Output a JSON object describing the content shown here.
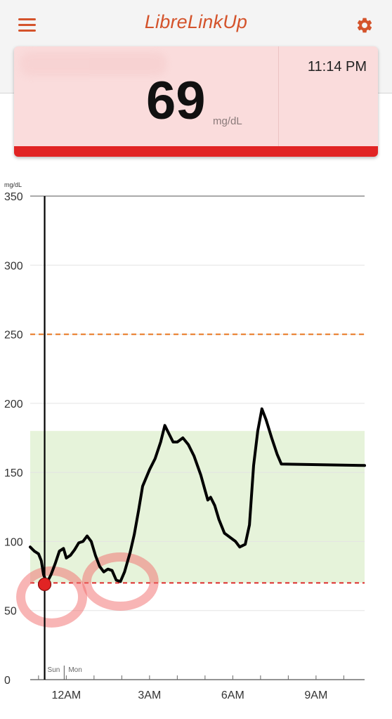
{
  "app": {
    "title": "LibreLinkUp",
    "accent_color": "#d4532b"
  },
  "header": {
    "menu_icon": "hamburger-menu-icon",
    "settings_icon": "gear-icon"
  },
  "reading": {
    "time": "11:14 PM",
    "value": "69",
    "unit": "mg/dL",
    "status_color": "#e12424",
    "card_color": "#fadcdc"
  },
  "chart_data": {
    "type": "line",
    "unit_label": "mg/dL",
    "ylim": [
      0,
      350
    ],
    "yticks": [
      0,
      50,
      100,
      150,
      200,
      250,
      300,
      350
    ],
    "xlim": [
      -1.3,
      10.75
    ],
    "xticks": [
      {
        "value": 0,
        "label": "12AM"
      },
      {
        "value": 3,
        "label": "3AM"
      },
      {
        "value": 6,
        "label": "6AM"
      },
      {
        "value": 9,
        "label": "9AM"
      }
    ],
    "day_labels": {
      "before": "Sun",
      "after": "Mon"
    },
    "target_range": {
      "low": 70,
      "high": 180,
      "color": "#e6f3da"
    },
    "high_threshold": {
      "value": 250,
      "color": "#e8761e"
    },
    "low_threshold": {
      "value": 70,
      "color": "#dd2b2b"
    },
    "cursor": {
      "x": -0.78,
      "y": 69,
      "color": "#e12424"
    },
    "series": [
      {
        "values": [
          [
            -1.3,
            96
          ],
          [
            -1.15,
            93
          ],
          [
            -1.0,
            91
          ],
          [
            -0.9,
            86
          ],
          [
            -0.82,
            76
          ],
          [
            -0.7,
            70
          ],
          [
            -0.55,
            76
          ],
          [
            -0.4,
            84
          ],
          [
            -0.25,
            93
          ],
          [
            -0.1,
            95
          ],
          [
            0.0,
            88
          ],
          [
            0.15,
            90
          ],
          [
            0.3,
            94
          ],
          [
            0.45,
            99
          ],
          [
            0.6,
            100
          ],
          [
            0.75,
            104
          ],
          [
            0.9,
            100
          ],
          [
            1.05,
            90
          ],
          [
            1.2,
            82
          ],
          [
            1.35,
            78
          ],
          [
            1.5,
            80
          ],
          [
            1.65,
            79
          ],
          [
            1.8,
            72
          ],
          [
            1.95,
            71
          ],
          [
            2.1,
            78
          ],
          [
            2.3,
            92
          ],
          [
            2.45,
            105
          ],
          [
            2.6,
            122
          ],
          [
            2.75,
            140
          ],
          [
            3.0,
            152
          ],
          [
            3.2,
            160
          ],
          [
            3.4,
            172
          ],
          [
            3.55,
            184
          ],
          [
            3.7,
            178
          ],
          [
            3.85,
            172
          ],
          [
            4.0,
            172
          ],
          [
            4.2,
            175
          ],
          [
            4.4,
            170
          ],
          [
            4.6,
            162
          ],
          [
            4.85,
            148
          ],
          [
            5.0,
            137
          ],
          [
            5.1,
            130
          ],
          [
            5.2,
            132
          ],
          [
            5.35,
            126
          ],
          [
            5.5,
            116
          ],
          [
            5.7,
            106
          ],
          [
            5.9,
            103
          ],
          [
            6.1,
            100
          ],
          [
            6.25,
            96
          ],
          [
            6.45,
            98
          ],
          [
            6.6,
            112
          ],
          [
            6.75,
            155
          ],
          [
            6.9,
            180
          ],
          [
            7.05,
            196
          ],
          [
            7.2,
            188
          ],
          [
            7.4,
            175
          ],
          [
            7.6,
            163
          ],
          [
            7.75,
            156
          ],
          [
            10.75,
            155
          ]
        ]
      }
    ]
  }
}
